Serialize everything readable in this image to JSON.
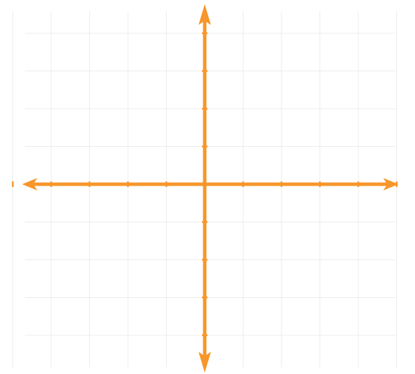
{
  "plane": {
    "x_range": [
      -5,
      5
    ],
    "y_range": [
      -4,
      4
    ],
    "grid": true,
    "axes_arrows": true,
    "tick_marks": true,
    "tick_labels": false
  },
  "colors": {
    "axis": "#F7962A",
    "grid": "#ECECEC",
    "background": "#FFFFFF"
  }
}
